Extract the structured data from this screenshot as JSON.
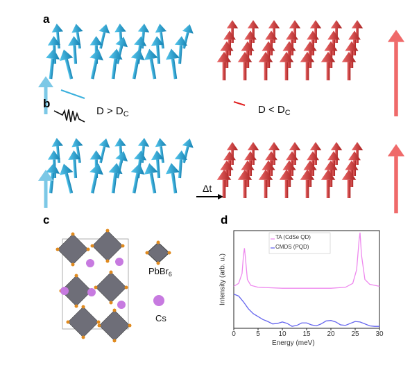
{
  "panels": {
    "a": {
      "label": "a",
      "left_condition": "D > D",
      "left_sub": "C",
      "right_condition": "D <  D",
      "right_sub": "C"
    },
    "b": {
      "label": "b",
      "delta_t": "Δt"
    },
    "c": {
      "label": "c",
      "octahedron_label": "PbBr",
      "octahedron_sub": "6",
      "sphere_label": "Cs"
    },
    "d": {
      "label": "d"
    }
  },
  "colors": {
    "blue_arrows": "#1e9fd0",
    "red_arrows": "#d43a3a",
    "ta": "#ee88ee",
    "cmds": "#6666ee"
  },
  "chart_data": {
    "type": "line",
    "xlabel": "Energy (meV)",
    "ylabel": "Intensity (arb. u.)",
    "xlim": [
      0,
      30
    ],
    "ylim": [
      0,
      1
    ],
    "xticks": [
      "0",
      "5",
      "10",
      "15",
      "20",
      "25",
      "30"
    ],
    "legend": "top-center",
    "grid": false,
    "series": [
      {
        "name": "TA (CdSe QD)",
        "color": "#ee88ee",
        "x": [
          0,
          1,
          1.7,
          2.0,
          2.2,
          2.4,
          2.8,
          3.5,
          5,
          10,
          15,
          20,
          23,
          24.5,
          25.3,
          25.8,
          26.0,
          26.3,
          27,
          28,
          30
        ],
        "y": [
          0.43,
          0.46,
          0.56,
          0.75,
          0.82,
          0.72,
          0.5,
          0.44,
          0.42,
          0.41,
          0.41,
          0.41,
          0.42,
          0.46,
          0.6,
          0.9,
          0.98,
          0.75,
          0.5,
          0.45,
          0.43
        ]
      },
      {
        "name": "CMDS (PQD)",
        "color": "#6666ee",
        "x": [
          0,
          1,
          2,
          3,
          4,
          5,
          6,
          7,
          8,
          9,
          10,
          11,
          12,
          13,
          14,
          15,
          16,
          17,
          18,
          19,
          20,
          21,
          22,
          23,
          24,
          25,
          26,
          27,
          28,
          29,
          30
        ],
        "y": [
          0.35,
          0.33,
          0.27,
          0.2,
          0.15,
          0.12,
          0.09,
          0.07,
          0.045,
          0.05,
          0.065,
          0.05,
          0.02,
          0.03,
          0.055,
          0.055,
          0.035,
          0.025,
          0.045,
          0.075,
          0.08,
          0.065,
          0.035,
          0.03,
          0.05,
          0.07,
          0.065,
          0.045,
          0.025,
          0.02,
          0.02
        ]
      }
    ]
  }
}
